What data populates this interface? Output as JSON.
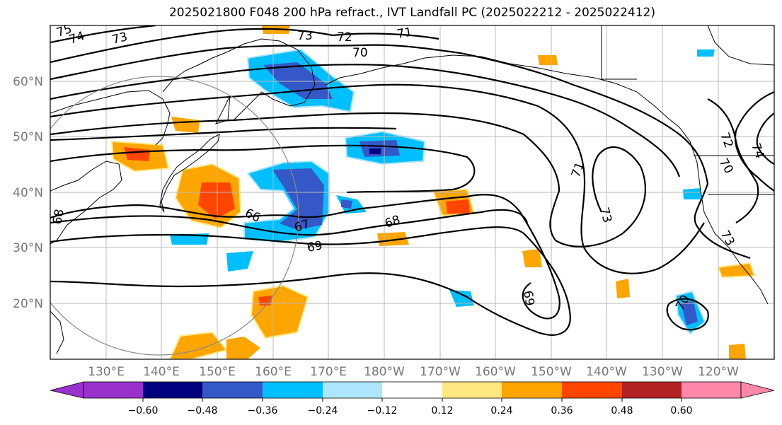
{
  "title": "2025021800 F048 200 hPa refract., IVT Landfall PC (2025022212 - 2025022412)",
  "map": {
    "lat_labels": [
      "60°N",
      "50°N",
      "40°N",
      "30°N",
      "20°N"
    ],
    "lon_labels": [
      "130°E",
      "140°E",
      "150°E",
      "160°E",
      "170°E",
      "180°W",
      "170°W",
      "160°W",
      "150°W",
      "140°W",
      "130°W",
      "120°W"
    ],
    "contour_labels": [
      "75",
      "74",
      "73",
      "73",
      "72",
      "71",
      "70",
      "66",
      "67",
      "68",
      "69",
      "68",
      "71",
      "73",
      "72",
      "70",
      "74",
      "73",
      "69",
      "70"
    ]
  },
  "colorbar": {
    "tick_labels": [
      "−0.60",
      "−0.48",
      "−0.36",
      "−0.24",
      "−0.12",
      "0.12",
      "0.24",
      "0.36",
      "0.48",
      "0.60"
    ],
    "colors": [
      "#9932CC",
      "#000080",
      "#3558C8",
      "#00BFFF",
      "#AEE6FF",
      "#FFFFFF",
      "#FFE882",
      "#FFA500",
      "#FF4500",
      "#B22222",
      "#FF88AA"
    ]
  }
}
